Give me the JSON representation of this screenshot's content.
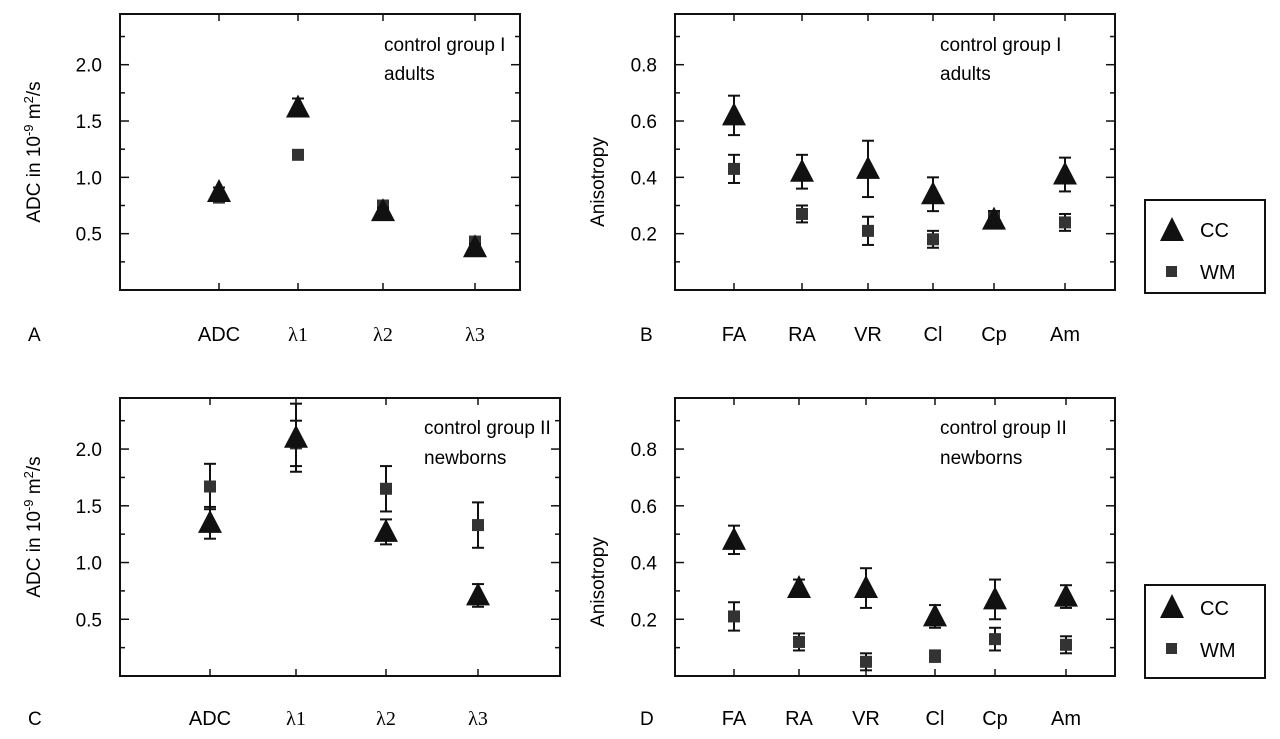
{
  "figure": {
    "panels": [
      {
        "id": "A",
        "panel_letter": "A",
        "annotation": [
          "control group I",
          "adults"
        ],
        "ylabel_base": "ADC in 10",
        "ylabel_exp": "-9",
        "ylabel_unit": " m",
        "ylabel_unit_exp": "2",
        "ylabel_tail": "/s"
      },
      {
        "id": "B",
        "panel_letter": "B",
        "annotation": [
          "control group I",
          "adults"
        ],
        "ylabel_base": "Anisotropy"
      },
      {
        "id": "C",
        "panel_letter": "C",
        "annotation": [
          "control group II",
          "newborns"
        ],
        "ylabel_base": "ADC in 10",
        "ylabel_exp": "-9",
        "ylabel_unit": " m",
        "ylabel_unit_exp": "2",
        "ylabel_tail": "/s"
      },
      {
        "id": "D",
        "panel_letter": "D",
        "annotation": [
          "control group II",
          "newborns"
        ],
        "ylabel_base": "Anisotropy"
      }
    ],
    "legend": {
      "cc_label": "CC",
      "wm_label": "WM"
    }
  },
  "chart_data": [
    {
      "type": "scatter",
      "panel": "A",
      "categories": [
        "ADC",
        "λ1",
        "λ2",
        "λ3"
      ],
      "ylim": [
        0,
        2.45
      ],
      "yticks": [
        0.5,
        1.0,
        1.5,
        2.0
      ],
      "ytick_labels": [
        "0.5",
        "1.0",
        "1.5",
        "2.0"
      ],
      "grid": false,
      "legend": "right",
      "series": [
        {
          "name": "CC",
          "marker": "triangle",
          "values": [
            0.87,
            1.62,
            0.7,
            0.38
          ],
          "err": [
            0.04,
            0.08,
            0.03,
            0.03
          ]
        },
        {
          "name": "WM",
          "marker": "square",
          "values": [
            0.82,
            1.2,
            0.75,
            0.43
          ],
          "err": [
            0.03,
            0.02,
            0.03,
            0.03
          ]
        }
      ]
    },
    {
      "type": "scatter",
      "panel": "B",
      "categories": [
        "FA",
        "RA",
        "VR",
        "Cl",
        "Cp",
        "Am"
      ],
      "ylim": [
        0,
        0.98
      ],
      "yticks": [
        0.2,
        0.4,
        0.6,
        0.8
      ],
      "ytick_labels": [
        "0.2",
        "0.4",
        "0.6",
        "0.8"
      ],
      "grid": false,
      "legend": "right",
      "series": [
        {
          "name": "CC",
          "marker": "triangle",
          "values": [
            0.62,
            0.42,
            0.43,
            0.34,
            0.25,
            0.41
          ],
          "err": [
            0.07,
            0.06,
            0.1,
            0.06,
            0.03,
            0.06
          ]
        },
        {
          "name": "WM",
          "marker": "square",
          "values": [
            0.43,
            0.27,
            0.21,
            0.18,
            0.26,
            0.24
          ],
          "err": [
            0.05,
            0.03,
            0.05,
            0.03,
            0.02,
            0.03
          ]
        }
      ]
    },
    {
      "type": "scatter",
      "panel": "C",
      "categories": [
        "ADC",
        "λ1",
        "λ2",
        "λ3"
      ],
      "ylim": [
        0,
        2.45
      ],
      "yticks": [
        0.5,
        1.0,
        1.5,
        2.0
      ],
      "ytick_labels": [
        "0.5",
        "1.0",
        "1.5",
        "2.0"
      ],
      "grid": false,
      "legend": "right",
      "series": [
        {
          "name": "CC",
          "marker": "triangle",
          "values": [
            1.35,
            2.1,
            1.27,
            0.71
          ],
          "err": [
            0.14,
            0.3,
            0.11,
            0.1
          ]
        },
        {
          "name": "WM",
          "marker": "square",
          "values": [
            1.67,
            2.05,
            1.65,
            1.33
          ],
          "err": [
            0.2,
            0.2,
            0.2,
            0.2
          ]
        }
      ]
    },
    {
      "type": "scatter",
      "panel": "D",
      "categories": [
        "FA",
        "RA",
        "VR",
        "Cl",
        "Cp",
        "Am"
      ],
      "ylim": [
        0,
        0.98
      ],
      "yticks": [
        0.2,
        0.4,
        0.6,
        0.8
      ],
      "ytick_labels": [
        "0.2",
        "0.4",
        "0.6",
        "0.8"
      ],
      "grid": false,
      "legend": "right",
      "series": [
        {
          "name": "CC",
          "marker": "triangle",
          "values": [
            0.48,
            0.31,
            0.31,
            0.21,
            0.27,
            0.28
          ],
          "err": [
            0.05,
            0.03,
            0.07,
            0.04,
            0.07,
            0.04
          ]
        },
        {
          "name": "WM",
          "marker": "square",
          "values": [
            0.21,
            0.12,
            0.05,
            0.07,
            0.13,
            0.11
          ],
          "err": [
            0.05,
            0.03,
            0.03,
            0.02,
            0.04,
            0.03
          ]
        }
      ]
    }
  ]
}
